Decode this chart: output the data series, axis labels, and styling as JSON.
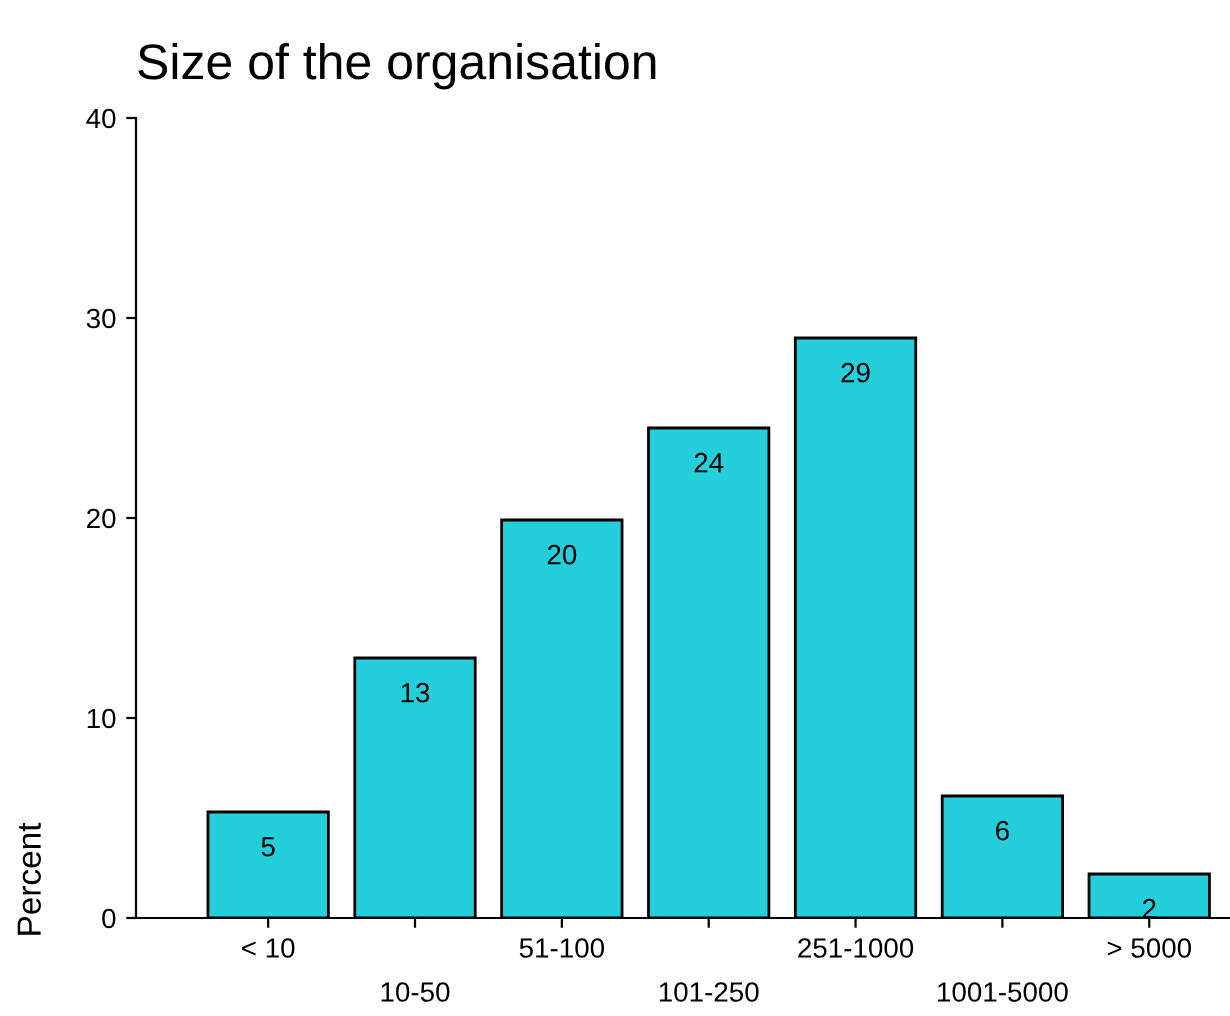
{
  "chart_data": {
    "type": "bar",
    "title": "Size of the organisation",
    "ylabel": "Percent",
    "categories": [
      "< 10",
      "10-50",
      "51-100",
      "101-250",
      "251-1000",
      "1001-5000",
      "> 5000"
    ],
    "values": [
      5.3,
      13.0,
      19.9,
      24.5,
      29.0,
      6.1,
      2.2
    ],
    "value_labels": [
      "5",
      "13",
      "20",
      "24",
      "29",
      "6",
      "2"
    ],
    "color": "#24cedb",
    "ylim": [
      0,
      40
    ],
    "yticks": [
      0,
      10,
      20,
      30,
      40
    ],
    "grid": false,
    "legend": false
  }
}
